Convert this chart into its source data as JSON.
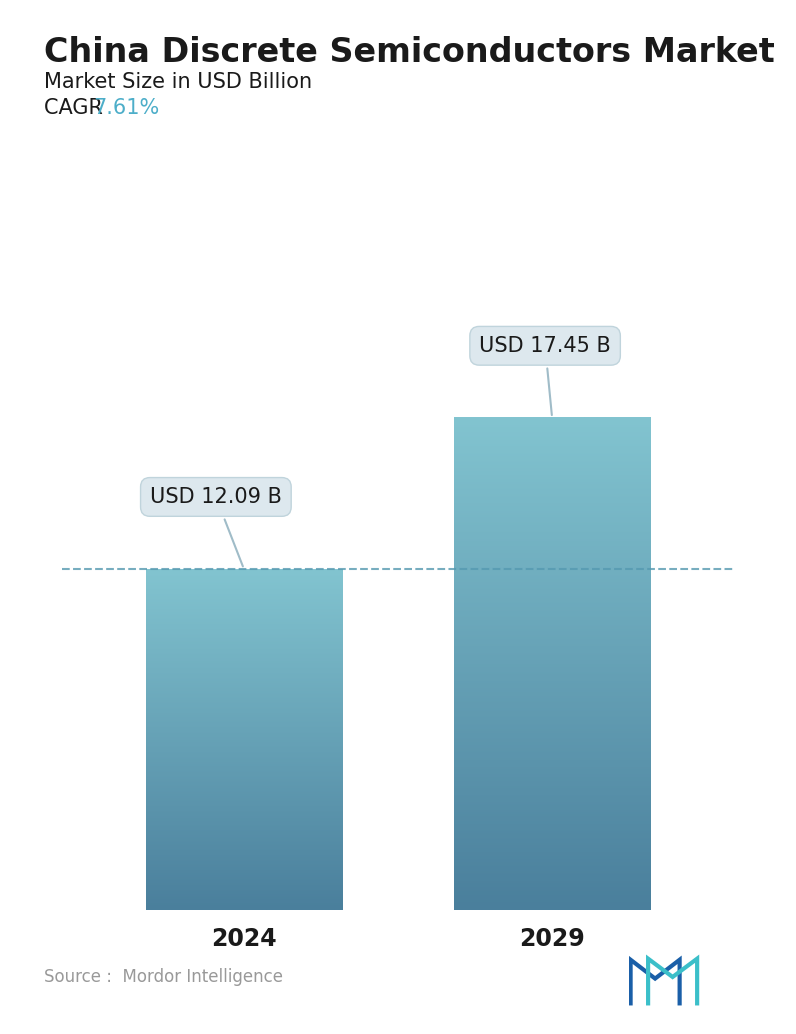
{
  "title": "China Discrete Semiconductors Market",
  "subtitle": "Market Size in USD Billion",
  "cagr_label": "CAGR ",
  "cagr_value": "7.61%",
  "cagr_color": "#4daec9",
  "categories": [
    "2024",
    "2029"
  ],
  "values": [
    12.09,
    17.45
  ],
  "labels": [
    "USD 12.09 B",
    "USD 17.45 B"
  ],
  "bar_color_top": "#82c4d0",
  "bar_color_bottom": "#4a7f9c",
  "dashed_line_color": "#5599b0",
  "dashed_line_y": 12.09,
  "source_text": "Source :  Mordor Intelligence",
  "source_color": "#999999",
  "background_color": "#ffffff",
  "title_fontsize": 24,
  "subtitle_fontsize": 15,
  "cagr_fontsize": 15,
  "label_fontsize": 15,
  "tick_fontsize": 17,
  "source_fontsize": 12,
  "ylim": [
    0,
    22
  ],
  "bar_width": 0.28,
  "x_positions": [
    0.28,
    0.72
  ]
}
